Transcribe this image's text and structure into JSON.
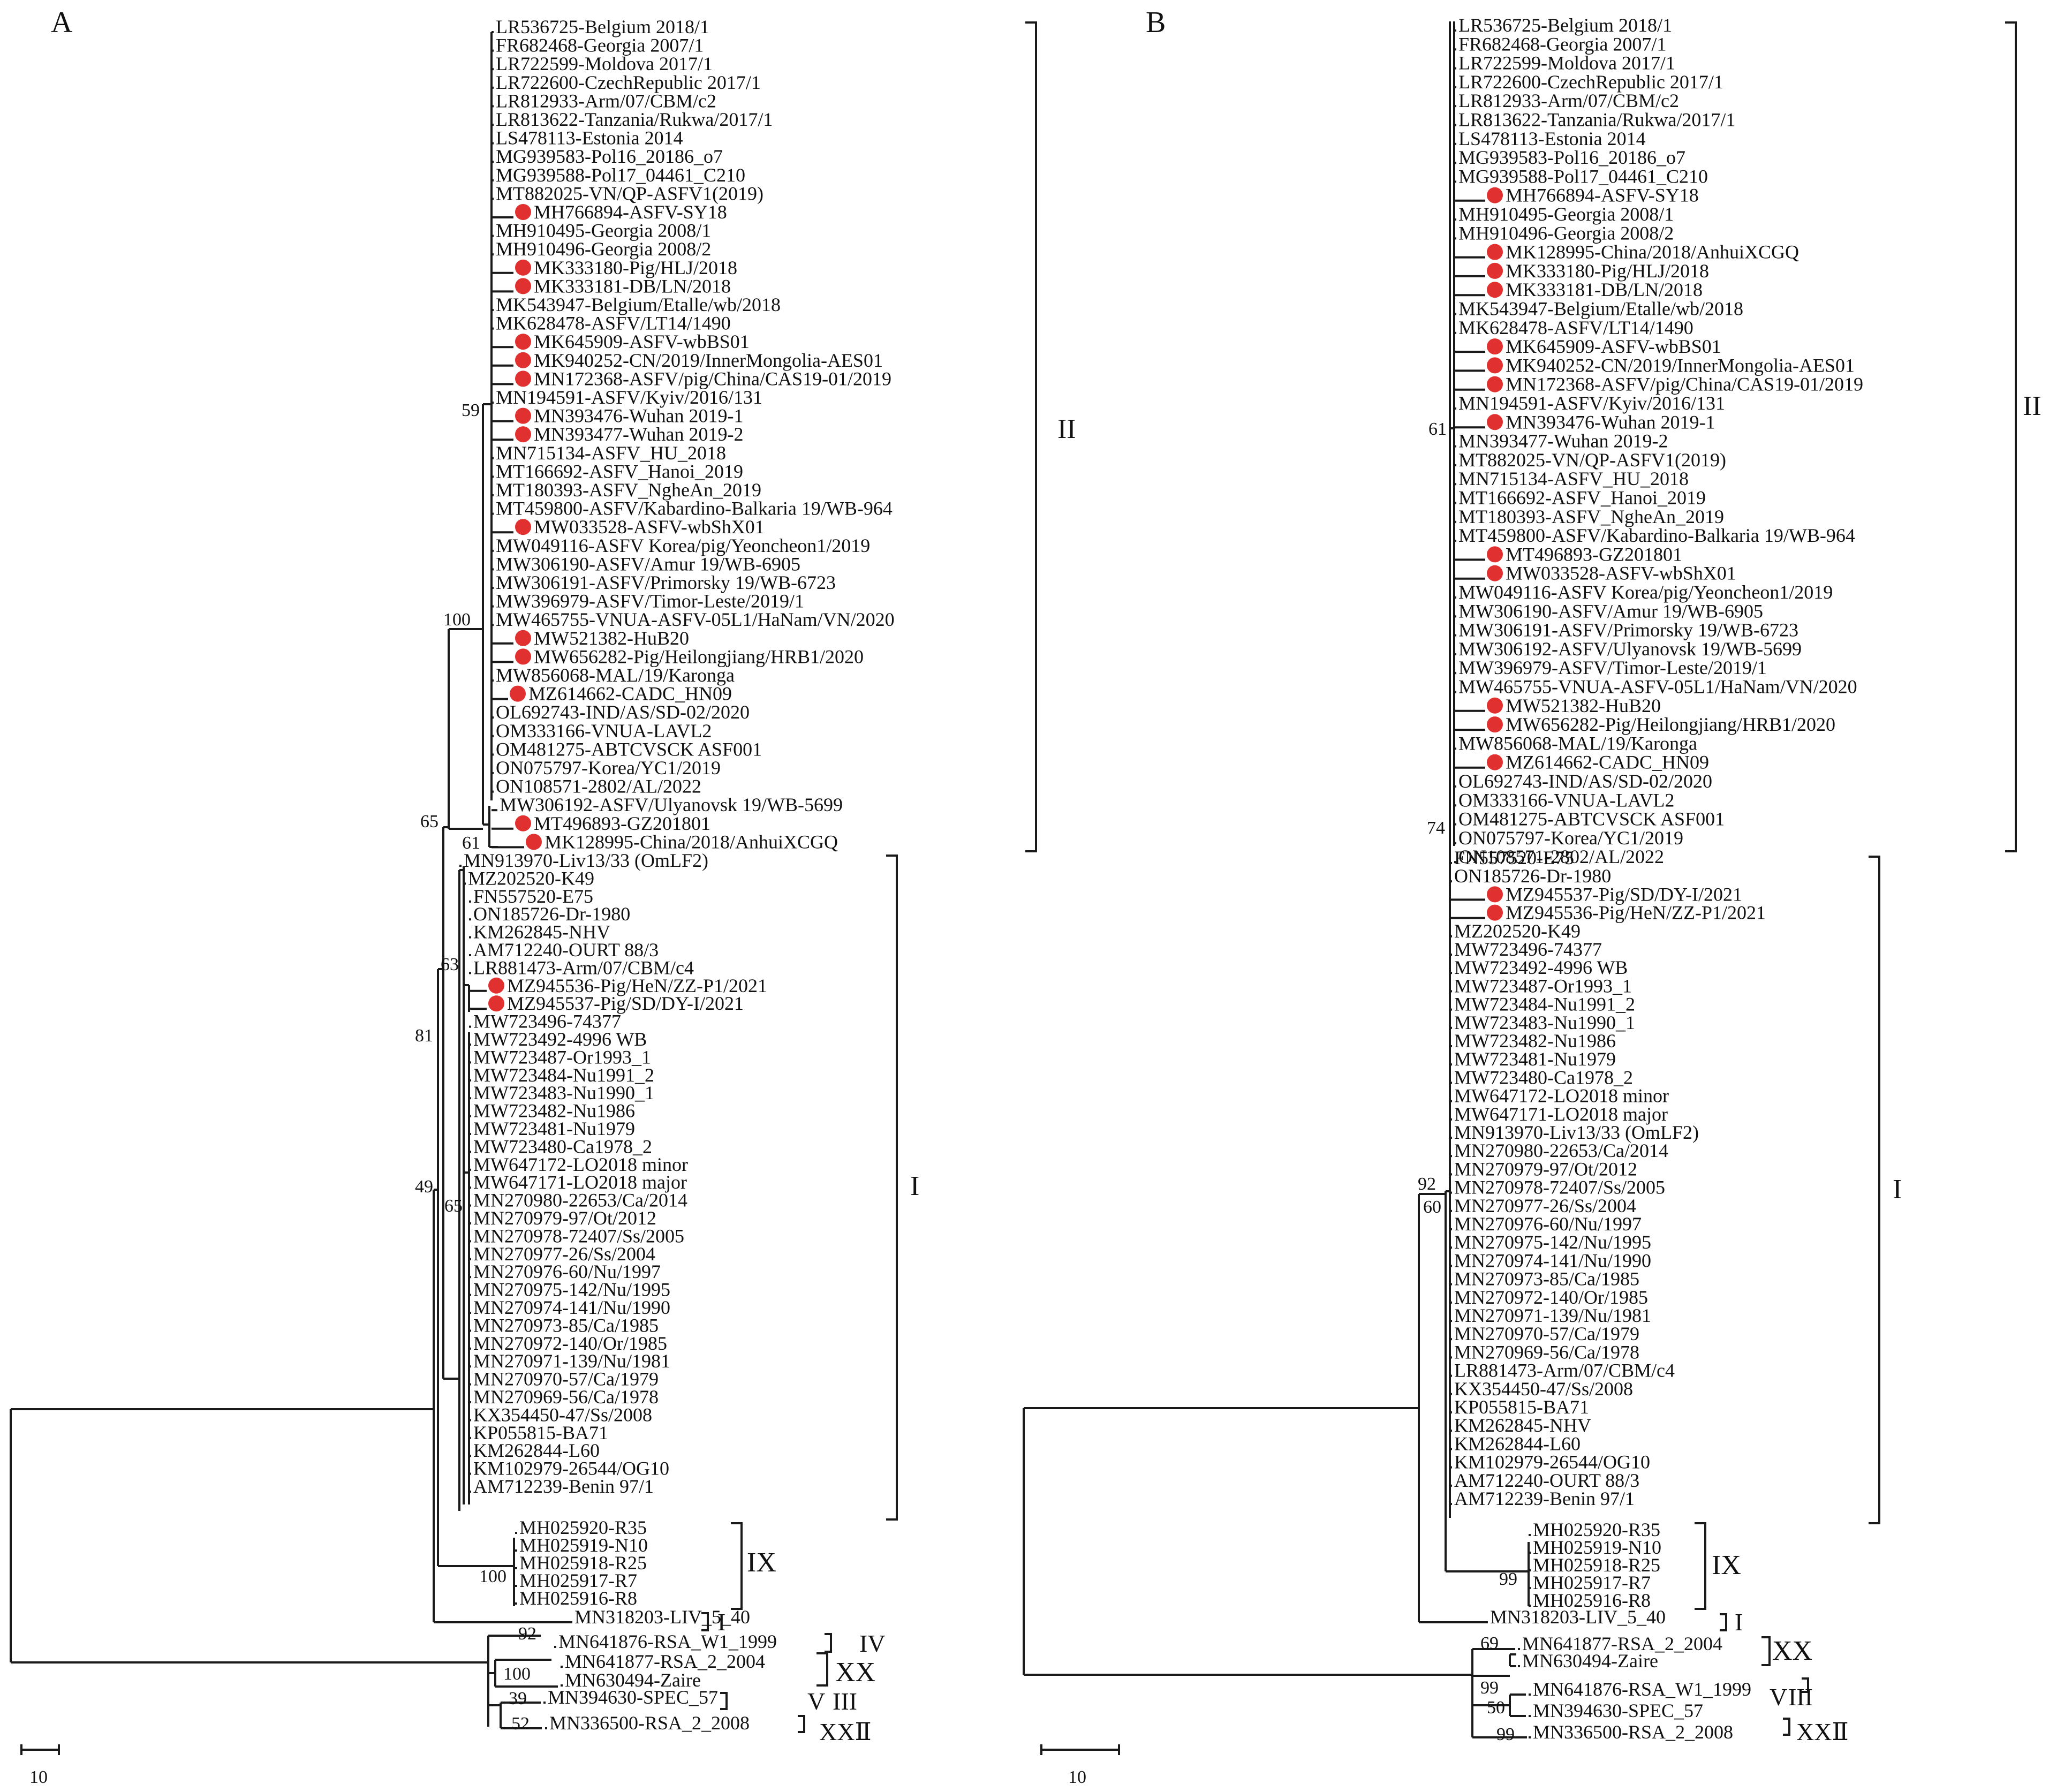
{
  "panels": [
    {
      "label": "A",
      "scale_label": "10",
      "clades": [
        {
          "label": "II"
        },
        {
          "label": "I"
        },
        {
          "label": "IX"
        },
        {
          "label": "I"
        },
        {
          "label": "IV"
        },
        {
          "label": "XX"
        },
        {
          "label": "V"
        },
        {
          "label": "III"
        },
        {
          "label": "XXⅡ"
        }
      ],
      "bootstrap": [
        "59",
        "100",
        "65",
        "61",
        "63",
        "81",
        "49",
        "65",
        "100",
        "92",
        "100",
        "39",
        "52"
      ],
      "marker_color": "#e03030",
      "leaves": [
        {
          "name": "LR536725-Belgium 2018/1",
          "marked": false
        },
        {
          "name": "FR682468-Georgia 2007/1",
          "marked": false
        },
        {
          "name": "LR722599-Moldova 2017/1",
          "marked": false
        },
        {
          "name": "LR722600-CzechRepublic 2017/1",
          "marked": false
        },
        {
          "name": "LR812933-Arm/07/CBM/c2",
          "marked": false
        },
        {
          "name": "LR813622-Tanzania/Rukwa/2017/1",
          "marked": false
        },
        {
          "name": "LS478113-Estonia 2014",
          "marked": false
        },
        {
          "name": "MG939583-Pol16_20186_o7",
          "marked": false
        },
        {
          "name": "MG939588-Pol17_04461_C210",
          "marked": false
        },
        {
          "name": "MT882025-VN/QP-ASFV1(2019)",
          "marked": false
        },
        {
          "name": "MH766894-ASFV-SY18",
          "marked": true
        },
        {
          "name": "MH910495-Georgia 2008/1",
          "marked": false
        },
        {
          "name": "MH910496-Georgia 2008/2",
          "marked": false
        },
        {
          "name": "MK333180-Pig/HLJ/2018",
          "marked": true
        },
        {
          "name": "MK333181-DB/LN/2018",
          "marked": true
        },
        {
          "name": "MK543947-Belgium/Etalle/wb/2018",
          "marked": false
        },
        {
          "name": "MK628478-ASFV/LT14/1490",
          "marked": false
        },
        {
          "name": "MK645909-ASFV-wbBS01",
          "marked": true
        },
        {
          "name": "MK940252-CN/2019/InnerMongolia-AES01",
          "marked": true
        },
        {
          "name": "MN172368-ASFV/pig/China/CAS19-01/2019",
          "marked": true
        },
        {
          "name": "MN194591-ASFV/Kyiv/2016/131",
          "marked": false
        },
        {
          "name": "MN393476-Wuhan 2019-1",
          "marked": true
        },
        {
          "name": "MN393477-Wuhan 2019-2",
          "marked": true
        },
        {
          "name": "MN715134-ASFV_HU_2018",
          "marked": false
        },
        {
          "name": "MT166692-ASFV_Hanoi_2019",
          "marked": false
        },
        {
          "name": "MT180393-ASFV_NgheAn_2019",
          "marked": false
        },
        {
          "name": "MT459800-ASFV/Kabardino-Balkaria 19/WB-964",
          "marked": false
        },
        {
          "name": "MW033528-ASFV-wbShX01",
          "marked": true
        },
        {
          "name": "MW049116-ASFV Korea/pig/Yeoncheon1/2019",
          "marked": false
        },
        {
          "name": "MW306190-ASFV/Amur 19/WB-6905",
          "marked": false
        },
        {
          "name": "MW306191-ASFV/Primorsky 19/WB-6723",
          "marked": false
        },
        {
          "name": "MW396979-ASFV/Timor-Leste/2019/1",
          "marked": false
        },
        {
          "name": "MW465755-VNUA-ASFV-05L1/HaNam/VN/2020",
          "marked": false
        },
        {
          "name": "MW521382-HuB20",
          "marked": true
        },
        {
          "name": "MW656282-Pig/Heilongjiang/HRB1/2020",
          "marked": true
        },
        {
          "name": "MW856068-MAL/19/Karonga",
          "marked": false
        },
        {
          "name": "MZ614662-CADC_HN09",
          "marked": true
        },
        {
          "name": "OL692743-IND/AS/SD-02/2020",
          "marked": false
        },
        {
          "name": "OM333166-VNUA-LAVL2",
          "marked": false
        },
        {
          "name": "OM481275-ABTCVSCK ASF001",
          "marked": false
        },
        {
          "name": "ON075797-Korea/YC1/2019",
          "marked": false
        },
        {
          "name": "ON108571-2802/AL/2022",
          "marked": false
        },
        {
          "name": "MW306192-ASFV/Ulyanovsk 19/WB-5699",
          "marked": false
        },
        {
          "name": "MT496893-GZ201801",
          "marked": true
        },
        {
          "name": "MK128995-China/2018/AnhuiXCGQ",
          "marked": true
        },
        {
          "name": "MN913970-Liv13/33 (OmLF2)",
          "marked": false
        },
        {
          "name": "MZ202520-K49",
          "marked": false
        },
        {
          "name": "FN557520-E75",
          "marked": false
        },
        {
          "name": "ON185726-Dr-1980",
          "marked": false
        },
        {
          "name": "KM262845-NHV",
          "marked": false
        },
        {
          "name": "AM712240-OURT 88/3",
          "marked": false
        },
        {
          "name": "LR881473-Arm/07/CBM/c4",
          "marked": false
        },
        {
          "name": "MZ945536-Pig/HeN/ZZ-P1/2021",
          "marked": true
        },
        {
          "name": "MZ945537-Pig/SD/DY-I/2021",
          "marked": true
        },
        {
          "name": "MW723496-74377",
          "marked": false
        },
        {
          "name": "MW723492-4996 WB",
          "marked": false
        },
        {
          "name": "MW723487-Or1993_1",
          "marked": false
        },
        {
          "name": "MW723484-Nu1991_2",
          "marked": false
        },
        {
          "name": "MW723483-Nu1990_1",
          "marked": false
        },
        {
          "name": "MW723482-Nu1986",
          "marked": false
        },
        {
          "name": "MW723481-Nu1979",
          "marked": false
        },
        {
          "name": "MW723480-Ca1978_2",
          "marked": false
        },
        {
          "name": "MW647172-LO2018 minor",
          "marked": false
        },
        {
          "name": "MW647171-LO2018 major",
          "marked": false
        },
        {
          "name": "MN270980-22653/Ca/2014",
          "marked": false
        },
        {
          "name": "MN270979-97/Ot/2012",
          "marked": false
        },
        {
          "name": "MN270978-72407/Ss/2005",
          "marked": false
        },
        {
          "name": "MN270977-26/Ss/2004",
          "marked": false
        },
        {
          "name": "MN270976-60/Nu/1997",
          "marked": false
        },
        {
          "name": "MN270975-142/Nu/1995",
          "marked": false
        },
        {
          "name": "MN270974-141/Nu/1990",
          "marked": false
        },
        {
          "name": "MN270973-85/Ca/1985",
          "marked": false
        },
        {
          "name": "MN270972-140/Or/1985",
          "marked": false
        },
        {
          "name": "MN270971-139/Nu/1981",
          "marked": false
        },
        {
          "name": "MN270970-57/Ca/1979",
          "marked": false
        },
        {
          "name": "MN270969-56/Ca/1978",
          "marked": false
        },
        {
          "name": "KX354450-47/Ss/2008",
          "marked": false
        },
        {
          "name": "KP055815-BA71",
          "marked": false
        },
        {
          "name": "KM262844-L60",
          "marked": false
        },
        {
          "name": "KM102979-26544/OG10",
          "marked": false
        },
        {
          "name": "AM712239-Benin 97/1",
          "marked": false
        },
        {
          "name": "MH025920-R35",
          "marked": false
        },
        {
          "name": "MH025919-N10",
          "marked": false
        },
        {
          "name": "MH025918-R25",
          "marked": false
        },
        {
          "name": "MH025917-R7",
          "marked": false
        },
        {
          "name": "MH025916-R8",
          "marked": false
        },
        {
          "name": "MN318203-LIV_5_40",
          "marked": false
        },
        {
          "name": "MN641876-RSA_W1_1999",
          "marked": false
        },
        {
          "name": "MN641877-RSA_2_2004",
          "marked": false
        },
        {
          "name": "MN630494-Zaire",
          "marked": false
        },
        {
          "name": "MN394630-SPEC_57",
          "marked": false
        },
        {
          "name": "MN336500-RSA_2_2008",
          "marked": false
        }
      ]
    },
    {
      "label": "B",
      "scale_label": "10",
      "clades": [
        {
          "label": "II"
        },
        {
          "label": "I"
        },
        {
          "label": "IX"
        },
        {
          "label": "I"
        },
        {
          "label": "XX"
        },
        {
          "label": "V"
        },
        {
          "label": "III"
        },
        {
          "label": "XXⅡ"
        }
      ],
      "bootstrap": [
        "61",
        "74",
        "92",
        "60",
        "99",
        "69",
        "99",
        "50",
        "99"
      ],
      "marker_color": "#e03030",
      "leaves": [
        {
          "name": "LR536725-Belgium 2018/1",
          "marked": false
        },
        {
          "name": "FR682468-Georgia 2007/1",
          "marked": false
        },
        {
          "name": "LR722599-Moldova 2017/1",
          "marked": false
        },
        {
          "name": "LR722600-CzechRepublic 2017/1",
          "marked": false
        },
        {
          "name": "LR812933-Arm/07/CBM/c2",
          "marked": false
        },
        {
          "name": "LR813622-Tanzania/Rukwa/2017/1",
          "marked": false
        },
        {
          "name": "LS478113-Estonia 2014",
          "marked": false
        },
        {
          "name": "MG939583-Pol16_20186_o7",
          "marked": false
        },
        {
          "name": "MG939588-Pol17_04461_C210",
          "marked": false
        },
        {
          "name": "MH766894-ASFV-SY18",
          "marked": true
        },
        {
          "name": "MH910495-Georgia 2008/1",
          "marked": false
        },
        {
          "name": "MH910496-Georgia 2008/2",
          "marked": false
        },
        {
          "name": "MK128995-China/2018/AnhuiXCGQ",
          "marked": true
        },
        {
          "name": "MK333180-Pig/HLJ/2018",
          "marked": true
        },
        {
          "name": "MK333181-DB/LN/2018",
          "marked": true
        },
        {
          "name": "MK543947-Belgium/Etalle/wb/2018",
          "marked": false
        },
        {
          "name": "MK628478-ASFV/LT14/1490",
          "marked": false
        },
        {
          "name": "MK645909-ASFV-wbBS01",
          "marked": true
        },
        {
          "name": "MK940252-CN/2019/InnerMongolia-AES01",
          "marked": true
        },
        {
          "name": "MN172368-ASFV/pig/China/CAS19-01/2019",
          "marked": true
        },
        {
          "name": "MN194591-ASFV/Kyiv/2016/131",
          "marked": false
        },
        {
          "name": "MN393476-Wuhan 2019-1",
          "marked": true
        },
        {
          "name": "MN393477-Wuhan 2019-2",
          "marked": false
        },
        {
          "name": "MT882025-VN/QP-ASFV1(2019)",
          "marked": false
        },
        {
          "name": "MN715134-ASFV_HU_2018",
          "marked": false
        },
        {
          "name": "MT166692-ASFV_Hanoi_2019",
          "marked": false
        },
        {
          "name": "MT180393-ASFV_NgheAn_2019",
          "marked": false
        },
        {
          "name": "MT459800-ASFV/Kabardino-Balkaria 19/WB-964",
          "marked": false
        },
        {
          "name": "MT496893-GZ201801",
          "marked": true
        },
        {
          "name": "MW033528-ASFV-wbShX01",
          "marked": true
        },
        {
          "name": "MW049116-ASFV Korea/pig/Yeoncheon1/2019",
          "marked": false
        },
        {
          "name": "MW306190-ASFV/Amur 19/WB-6905",
          "marked": false
        },
        {
          "name": "MW306191-ASFV/Primorsky 19/WB-6723",
          "marked": false
        },
        {
          "name": "MW306192-ASFV/Ulyanovsk 19/WB-5699",
          "marked": false
        },
        {
          "name": "MW396979-ASFV/Timor-Leste/2019/1",
          "marked": false
        },
        {
          "name": "MW465755-VNUA-ASFV-05L1/HaNam/VN/2020",
          "marked": false
        },
        {
          "name": "MW521382-HuB20",
          "marked": true
        },
        {
          "name": "MW656282-Pig/Heilongjiang/HRB1/2020",
          "marked": true
        },
        {
          "name": "MW856068-MAL/19/Karonga",
          "marked": false
        },
        {
          "name": "MZ614662-CADC_HN09",
          "marked": true
        },
        {
          "name": "OL692743-IND/AS/SD-02/2020",
          "marked": false
        },
        {
          "name": "OM333166-VNUA-LAVL2",
          "marked": false
        },
        {
          "name": "OM481275-ABTCVSCK ASF001",
          "marked": false
        },
        {
          "name": "ON075797-Korea/YC1/2019",
          "marked": false
        },
        {
          "name": "ON108571-2802/AL/2022",
          "marked": false
        },
        {
          "name": "FN557520-E75",
          "marked": false
        },
        {
          "name": "ON185726-Dr-1980",
          "marked": false
        },
        {
          "name": "MZ945537-Pig/SD/DY-I/2021",
          "marked": true
        },
        {
          "name": "MZ945536-Pig/HeN/ZZ-P1/2021",
          "marked": true
        },
        {
          "name": "MZ202520-K49",
          "marked": false
        },
        {
          "name": "MW723496-74377",
          "marked": false
        },
        {
          "name": "MW723492-4996 WB",
          "marked": false
        },
        {
          "name": "MW723487-Or1993_1",
          "marked": false
        },
        {
          "name": "MW723484-Nu1991_2",
          "marked": false
        },
        {
          "name": "MW723483-Nu1990_1",
          "marked": false
        },
        {
          "name": "MW723482-Nu1986",
          "marked": false
        },
        {
          "name": "MW723481-Nu1979",
          "marked": false
        },
        {
          "name": "MW723480-Ca1978_2",
          "marked": false
        },
        {
          "name": "MW647172-LO2018 minor",
          "marked": false
        },
        {
          "name": "MW647171-LO2018 major",
          "marked": false
        },
        {
          "name": "MN913970-Liv13/33 (OmLF2)",
          "marked": false
        },
        {
          "name": "MN270980-22653/Ca/2014",
          "marked": false
        },
        {
          "name": "MN270979-97/Ot/2012",
          "marked": false
        },
        {
          "name": "MN270978-72407/Ss/2005",
          "marked": false
        },
        {
          "name": "MN270977-26/Ss/2004",
          "marked": false
        },
        {
          "name": "MN270976-60/Nu/1997",
          "marked": false
        },
        {
          "name": "MN270975-142/Nu/1995",
          "marked": false
        },
        {
          "name": "MN270974-141/Nu/1990",
          "marked": false
        },
        {
          "name": "MN270973-85/Ca/1985",
          "marked": false
        },
        {
          "name": "MN270972-140/Or/1985",
          "marked": false
        },
        {
          "name": "MN270971-139/Nu/1981",
          "marked": false
        },
        {
          "name": "MN270970-57/Ca/1979",
          "marked": false
        },
        {
          "name": "MN270969-56/Ca/1978",
          "marked": false
        },
        {
          "name": "LR881473-Arm/07/CBM/c4",
          "marked": false
        },
        {
          "name": "KX354450-47/Ss/2008",
          "marked": false
        },
        {
          "name": "KP055815-BA71",
          "marked": false
        },
        {
          "name": "KM262845-NHV",
          "marked": false
        },
        {
          "name": "KM262844-L60",
          "marked": false
        },
        {
          "name": "KM102979-26544/OG10",
          "marked": false
        },
        {
          "name": "AM712240-OURT 88/3",
          "marked": false
        },
        {
          "name": "AM712239-Benin 97/1",
          "marked": false
        },
        {
          "name": "MH025920-R35",
          "marked": false
        },
        {
          "name": "MH025919-N10",
          "marked": false
        },
        {
          "name": "MH025918-R25",
          "marked": false
        },
        {
          "name": "MH025917-R7",
          "marked": false
        },
        {
          "name": "MH025916-R8",
          "marked": false
        },
        {
          "name": "MN318203-LIV_5_40",
          "marked": false
        },
        {
          "name": "MN641877-RSA_2_2004",
          "marked": false
        },
        {
          "name": "MN630494-Zaire",
          "marked": false
        },
        {
          "name": "MN641876-RSA_W1_1999",
          "marked": false
        },
        {
          "name": "MN394630-SPEC_57",
          "marked": false
        },
        {
          "name": "MN336500-RSA_2_2008",
          "marked": false
        }
      ]
    }
  ]
}
